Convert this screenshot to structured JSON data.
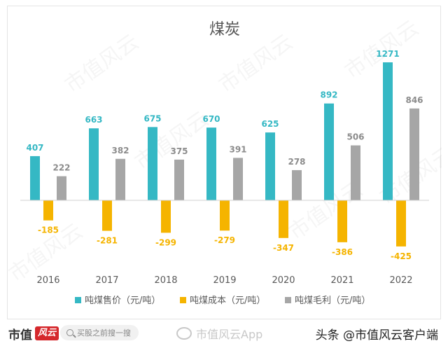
{
  "chart_data": {
    "type": "bar",
    "title": "煤炭",
    "categories": [
      "2016",
      "2017",
      "2018",
      "2019",
      "2020",
      "2021",
      "2022"
    ],
    "series": [
      {
        "name": "吨煤售价（元/吨）",
        "color": "#35b8c4",
        "label_color": "#35b8c4",
        "values": [
          407,
          663,
          675,
          670,
          625,
          892,
          1271
        ]
      },
      {
        "name": "吨煤成本（元/吨）",
        "color": "#f5b400",
        "label_color": "#f5b400",
        "values": [
          -185,
          -281,
          -299,
          -279,
          -347,
          -386,
          -425
        ]
      },
      {
        "name": "吨煤毛利（元/吨）",
        "color": "#a6a6a6",
        "label_color": "#8c8c8c",
        "values": [
          222,
          382,
          375,
          391,
          278,
          506,
          846
        ]
      }
    ],
    "ylim": [
      -520,
      1400
    ],
    "grid": false,
    "legend": "bottom"
  },
  "watermark": "市值风云",
  "footer": {
    "brand": "市值",
    "brand_logo": "风云",
    "search_placeholder": "买股之前搜一搜",
    "weibo_text": "市值风云App",
    "headline_text": "头条 @市值风云客户端"
  }
}
